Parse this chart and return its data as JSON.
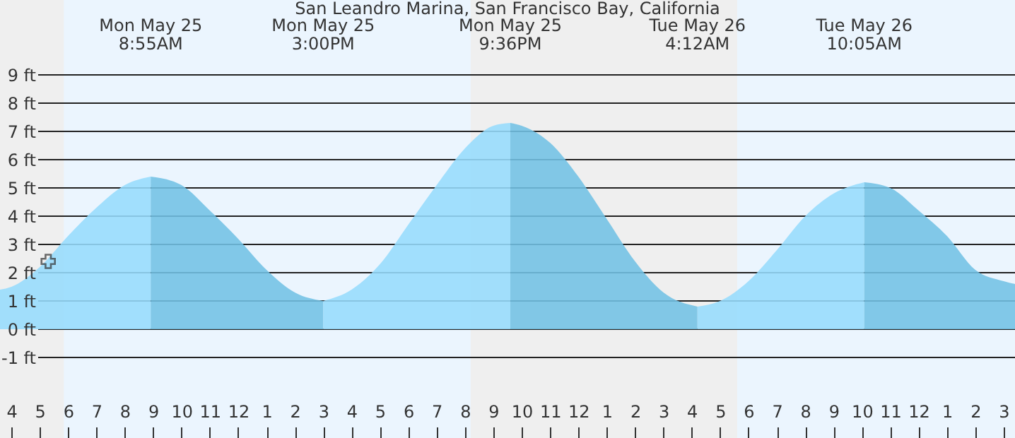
{
  "chart_data": {
    "type": "area",
    "title": "San Leandro Marina, San Francisco Bay, California",
    "xlim": [
      "--05-25T03:36",
      "--05-26T15:24"
    ],
    "ylim": [
      -3.85,
      11.65
    ],
    "xticks": [
      {
        "value": "--05-25T04:00",
        "label": "4"
      },
      {
        "value": "--05-25T05:00",
        "label": "5"
      },
      {
        "value": "--05-25T06:00",
        "label": "6"
      },
      {
        "value": "--05-25T07:00",
        "label": "7"
      },
      {
        "value": "--05-25T08:00",
        "label": "8"
      },
      {
        "value": "--05-25T09:00",
        "label": "9"
      },
      {
        "value": "--05-25T10:00",
        "label": "10"
      },
      {
        "value": "--05-25T11:00",
        "label": "11"
      },
      {
        "value": "--05-25T12:00",
        "label": "12"
      },
      {
        "value": "--05-25T13:00",
        "label": "1"
      },
      {
        "value": "--05-25T14:00",
        "label": "2"
      },
      {
        "value": "--05-25T15:00",
        "label": "3"
      },
      {
        "value": "--05-25T16:00",
        "label": "4"
      },
      {
        "value": "--05-25T17:00",
        "label": "5"
      },
      {
        "value": "--05-25T18:00",
        "label": "6"
      },
      {
        "value": "--05-25T19:00",
        "label": "7"
      },
      {
        "value": "--05-25T20:00",
        "label": "8"
      },
      {
        "value": "--05-25T21:00",
        "label": "9"
      },
      {
        "value": "--05-25T22:00",
        "label": "10"
      },
      {
        "value": "--05-25T23:00",
        "label": "11"
      },
      {
        "value": "--05-26T00:00",
        "label": "12"
      },
      {
        "value": "--05-26T01:00",
        "label": "1"
      },
      {
        "value": "--05-26T02:00",
        "label": "2"
      },
      {
        "value": "--05-26T03:00",
        "label": "3"
      },
      {
        "value": "--05-26T04:00",
        "label": "4"
      },
      {
        "value": "--05-26T05:00",
        "label": "5"
      },
      {
        "value": "--05-26T06:00",
        "label": "6"
      },
      {
        "value": "--05-26T07:00",
        "label": "7"
      },
      {
        "value": "--05-26T08:00",
        "label": "8"
      },
      {
        "value": "--05-26T09:00",
        "label": "9"
      },
      {
        "value": "--05-26T10:00",
        "label": "10"
      },
      {
        "value": "--05-26T11:00",
        "label": "11"
      },
      {
        "value": "--05-26T12:00",
        "label": "12"
      },
      {
        "value": "--05-26T13:00",
        "label": "1"
      },
      {
        "value": "--05-26T14:00",
        "label": "2"
      },
      {
        "value": "--05-26T15:00",
        "label": "3"
      }
    ],
    "x2lim": [
      "--05-25T03:36",
      "--05-26T15:24"
    ],
    "x2ticks": [
      {
        "value": "--05-25T08:55",
        "label": "Mon May 25\n8:55AM"
      },
      {
        "value": "--05-25T15:00",
        "label": "Mon May 25\n3:00PM"
      },
      {
        "value": "--05-25T21:36",
        "label": "Mon May 25\n9:36PM"
      },
      {
        "value": "--05-26T04:12",
        "label": "Tue May 26\n4:12AM"
      },
      {
        "value": "--05-26T10:05",
        "label": "Tue May 26\n10:05AM"
      }
    ],
    "yticks": [
      {
        "value": -1,
        "label": "-1 ft"
      },
      {
        "value": 0,
        "label": "0 ft"
      },
      {
        "value": 1,
        "label": "1 ft"
      },
      {
        "value": 2,
        "label": "2 ft"
      },
      {
        "value": 3,
        "label": "3 ft"
      },
      {
        "value": 4,
        "label": "4 ft"
      },
      {
        "value": 5,
        "label": "5 ft"
      },
      {
        "value": 6,
        "label": "6 ft"
      },
      {
        "value": 7,
        "label": "7 ft"
      },
      {
        "value": 8,
        "label": "8 ft"
      },
      {
        "value": 9,
        "label": "9 ft"
      }
    ],
    "grid": "y",
    "bands": [
      {
        "axis": "x",
        "from": "--05-25T03:36",
        "to": "--05-25T05:51",
        "color": "#efefef"
      },
      {
        "axis": "x",
        "from": "--05-25T20:12",
        "to": "--05-26T05:36",
        "color": "#efefef"
      }
    ],
    "series": [
      {
        "color": "#96dcfd",
        "x": [
          "--05-25T03:36",
          "--05-25T04:00",
          "--05-25T05:00",
          "--05-25T06:00",
          "--05-25T07:00",
          "--05-25T08:00",
          "--05-25T08:55"
        ],
        "values": [
          1.4,
          1.5,
          2.2,
          3.3,
          4.3,
          5.1,
          5.4
        ]
      },
      {
        "color": "#72c1e5",
        "x": [
          "--05-25T08:55",
          "--05-25T10:00",
          "--05-25T11:00",
          "--05-25T12:00",
          "--05-25T13:00",
          "--05-25T14:00",
          "--05-25T15:00"
        ],
        "values": [
          5.4,
          5.1,
          4.2,
          3.2,
          2.1,
          1.3,
          1.0
        ]
      },
      {
        "color": "#96dcfd",
        "x": [
          "--05-25T15:00",
          "--05-25T16:00",
          "--05-25T17:00",
          "--05-25T18:00",
          "--05-25T19:00",
          "--05-25T20:00",
          "--05-25T21:00",
          "--05-25T21:36"
        ],
        "values": [
          1.0,
          1.4,
          2.3,
          3.7,
          5.1,
          6.4,
          7.2,
          7.3
        ]
      },
      {
        "color": "#72c1e5",
        "x": [
          "--05-25T21:36",
          "--05-25T22:00",
          "--05-25T23:00",
          "--05-26T00:00",
          "--05-26T01:00",
          "--05-26T02:00",
          "--05-26T03:00",
          "--05-26T04:12"
        ],
        "values": [
          7.3,
          7.2,
          6.6,
          5.4,
          3.9,
          2.4,
          1.3,
          0.8
        ]
      },
      {
        "color": "#96dcfd",
        "x": [
          "--05-26T04:12",
          "--05-26T05:00",
          "--05-26T06:00",
          "--05-26T07:00",
          "--05-26T08:00",
          "--05-26T09:00",
          "--05-26T10:05"
        ],
        "values": [
          0.8,
          1.0,
          1.7,
          2.8,
          4.0,
          4.8,
          5.2
        ]
      },
      {
        "color": "#72c1e5",
        "x": [
          "--05-26T10:05",
          "--05-26T11:00",
          "--05-26T12:00",
          "--05-26T13:00",
          "--05-26T14:00",
          "--05-26T15:00",
          "--05-26T15:24"
        ],
        "values": [
          5.2,
          5.0,
          4.2,
          3.3,
          2.1,
          1.7,
          1.6
        ]
      },
      {
        "type": "scatter",
        "marker": "cross",
        "color": "#333333",
        "x": [
          "--05-25T05:18"
        ],
        "values": [
          2.4
        ]
      }
    ]
  }
}
